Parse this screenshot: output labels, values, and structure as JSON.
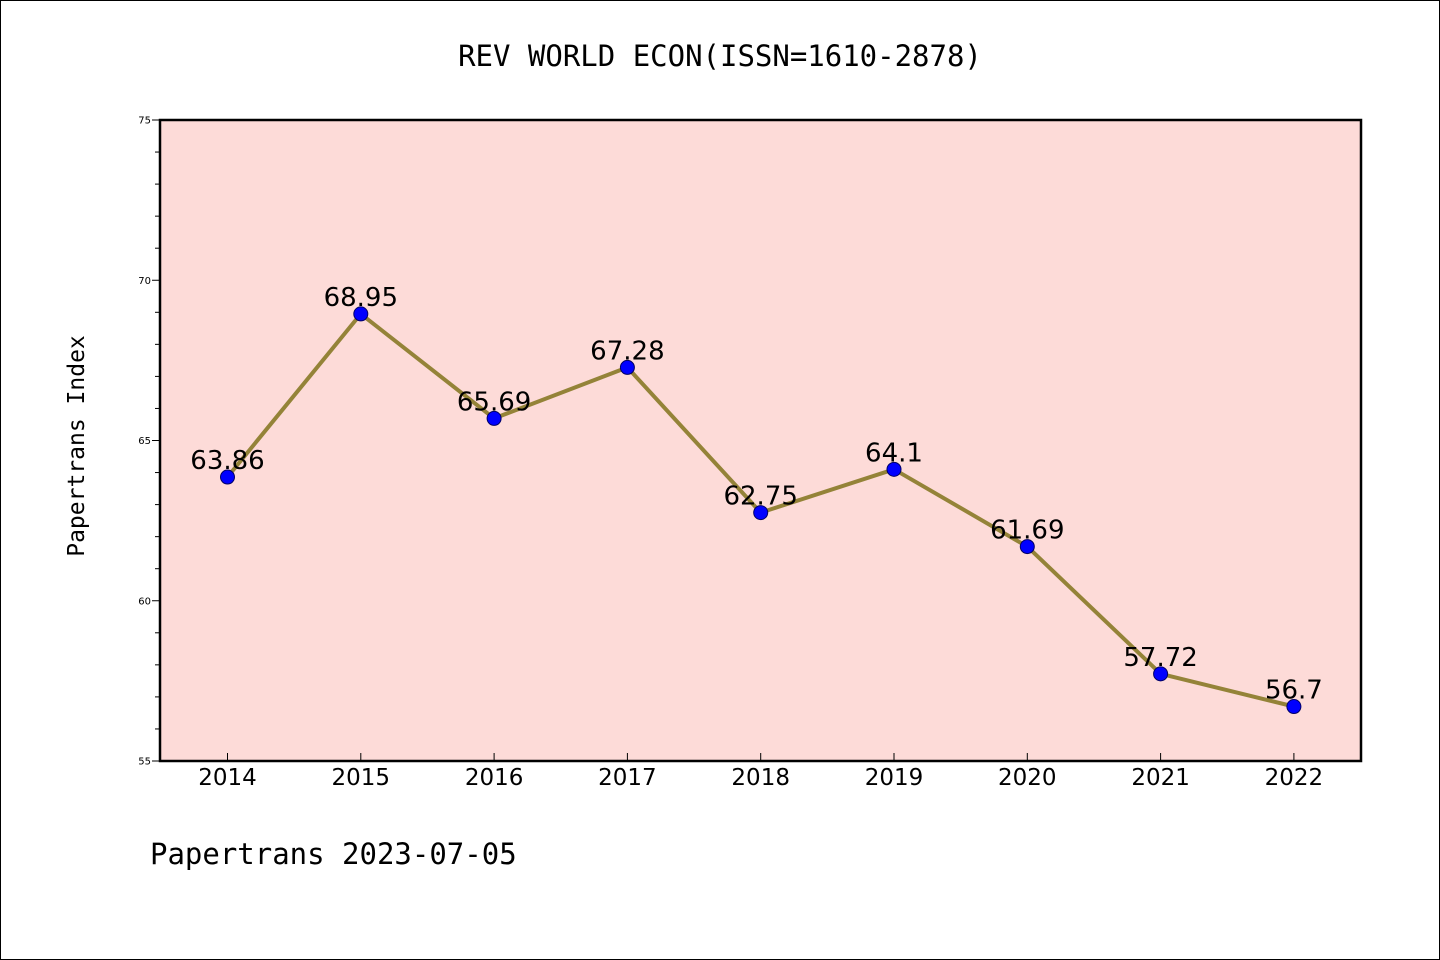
{
  "chart_data": {
    "type": "line",
    "title": "REV WORLD ECON(ISSN=1610-2878)",
    "xlabel": "",
    "ylabel": "Papertrans Index",
    "categories": [
      "2014",
      "2015",
      "2016",
      "2017",
      "2018",
      "2019",
      "2020",
      "2021",
      "2022"
    ],
    "series": [
      {
        "values": [
          63.86,
          68.95,
          65.69,
          67.28,
          62.75,
          64.1,
          61.69,
          57.72,
          56.7
        ],
        "labels": [
          "63.86",
          "68.95",
          "65.69",
          "67.28",
          "62.75",
          "64.1",
          "61.69",
          "57.72",
          "56.7"
        ]
      }
    ],
    "ylim": [
      55,
      75
    ],
    "yticks": [
      55,
      60,
      65,
      70,
      75
    ],
    "ytick_labels": [
      "55",
      "60",
      "65",
      "70",
      "75"
    ],
    "grid": false,
    "colors": {
      "plot_background": "#fddbd8",
      "line": "#948338",
      "marker": "#0000ff"
    }
  },
  "footer": "Papertrans 2023-07-05"
}
